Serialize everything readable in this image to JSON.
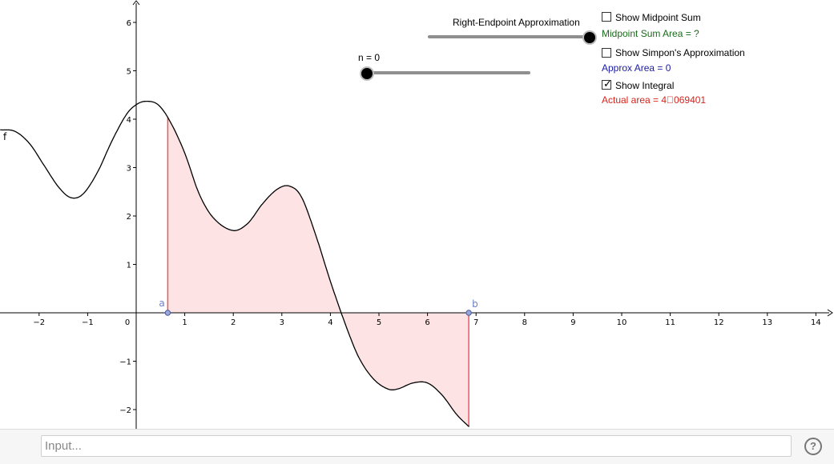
{
  "graph": {
    "function_label": "f",
    "x_ticks": [
      "−2",
      "−1",
      "0",
      "1",
      "2",
      "3",
      "4",
      "5",
      "6",
      "7",
      "8",
      "9",
      "10",
      "11",
      "12",
      "13",
      "14"
    ],
    "y_ticks": [
      "−2",
      "−1",
      "1",
      "2",
      "3",
      "4",
      "5",
      "6"
    ],
    "point_a_label": "a",
    "point_b_label": "b",
    "point_a_x": 0.65,
    "point_b_x": 6.85,
    "curve_color": "#000000",
    "area_fill_color": "#fde3e4",
    "area_edge_color": "#e8595e",
    "point_color": "#6b7fc7"
  },
  "controls": {
    "right_endpoint_label": "Right-Endpoint Approximation",
    "right_endpoint_value": 1.0,
    "n_label": "n = 0",
    "n_value": 0.0,
    "show_midpoint_label": "Show Midpoint Sum",
    "show_midpoint_checked": false,
    "midpoint_area_text": "Midpoint Sum Area = ?",
    "show_simpson_label": "Show Simpon's Approximation",
    "show_simpson_checked": false,
    "approx_area_text": "Approx Area = 0",
    "show_integral_label": "Show Integral",
    "show_integral_checked": true,
    "actual_area_text": "Actual area = 4\u0000069401",
    "midpoint_color": "#1a6b1a",
    "approx_color": "#1a1aa8",
    "actual_color": "#d9241c"
  },
  "input_bar": {
    "placeholder": "Input...",
    "help_icon": "?"
  }
}
